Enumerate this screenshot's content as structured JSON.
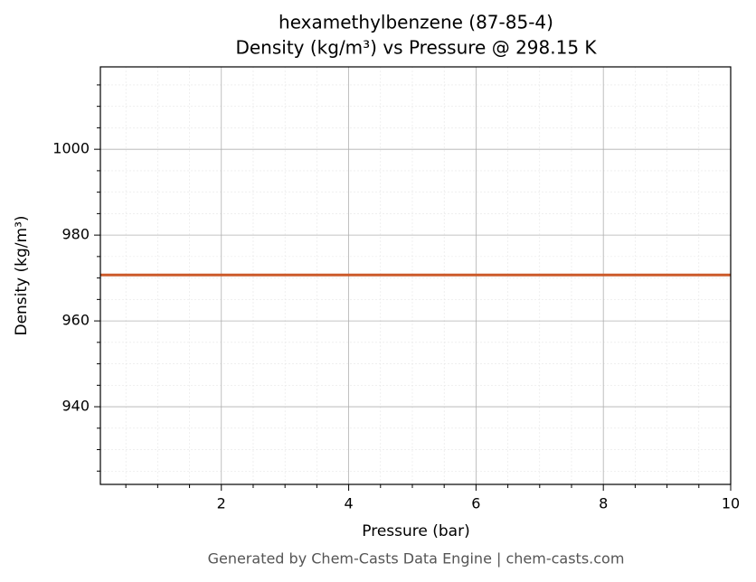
{
  "chart_data": {
    "type": "line",
    "title": "hexamethylbenzene (87-85-4)",
    "subtitle": "Density (kg/m³) vs Pressure @ 298.15 K",
    "x_label": "Pressure (bar)",
    "y_label": "Density (kg/m³)",
    "footer": "Generated by Chem-Casts Data Engine | chem-casts.com",
    "x": [
      0.1,
      10
    ],
    "series": [
      {
        "name": "Density",
        "color": "#cc5a2a",
        "values": [
          970.7,
          970.7
        ]
      }
    ],
    "xlim": [
      0.1,
      10
    ],
    "ylim": [
      921.9,
      1019.2
    ],
    "xticks": [
      2,
      4,
      6,
      8,
      10
    ],
    "yticks": [
      940,
      960,
      980,
      1000
    ],
    "xminorticks": [
      0.5,
      1,
      1.5,
      2.5,
      3,
      3.5,
      4.5,
      5,
      5.5,
      6.5,
      7,
      7.5,
      8.5,
      9,
      9.5
    ],
    "yminorticks": [
      925,
      930,
      935,
      945,
      950,
      955,
      965,
      970,
      975,
      985,
      990,
      995,
      1005,
      1010,
      1015
    ],
    "grid": true
  }
}
